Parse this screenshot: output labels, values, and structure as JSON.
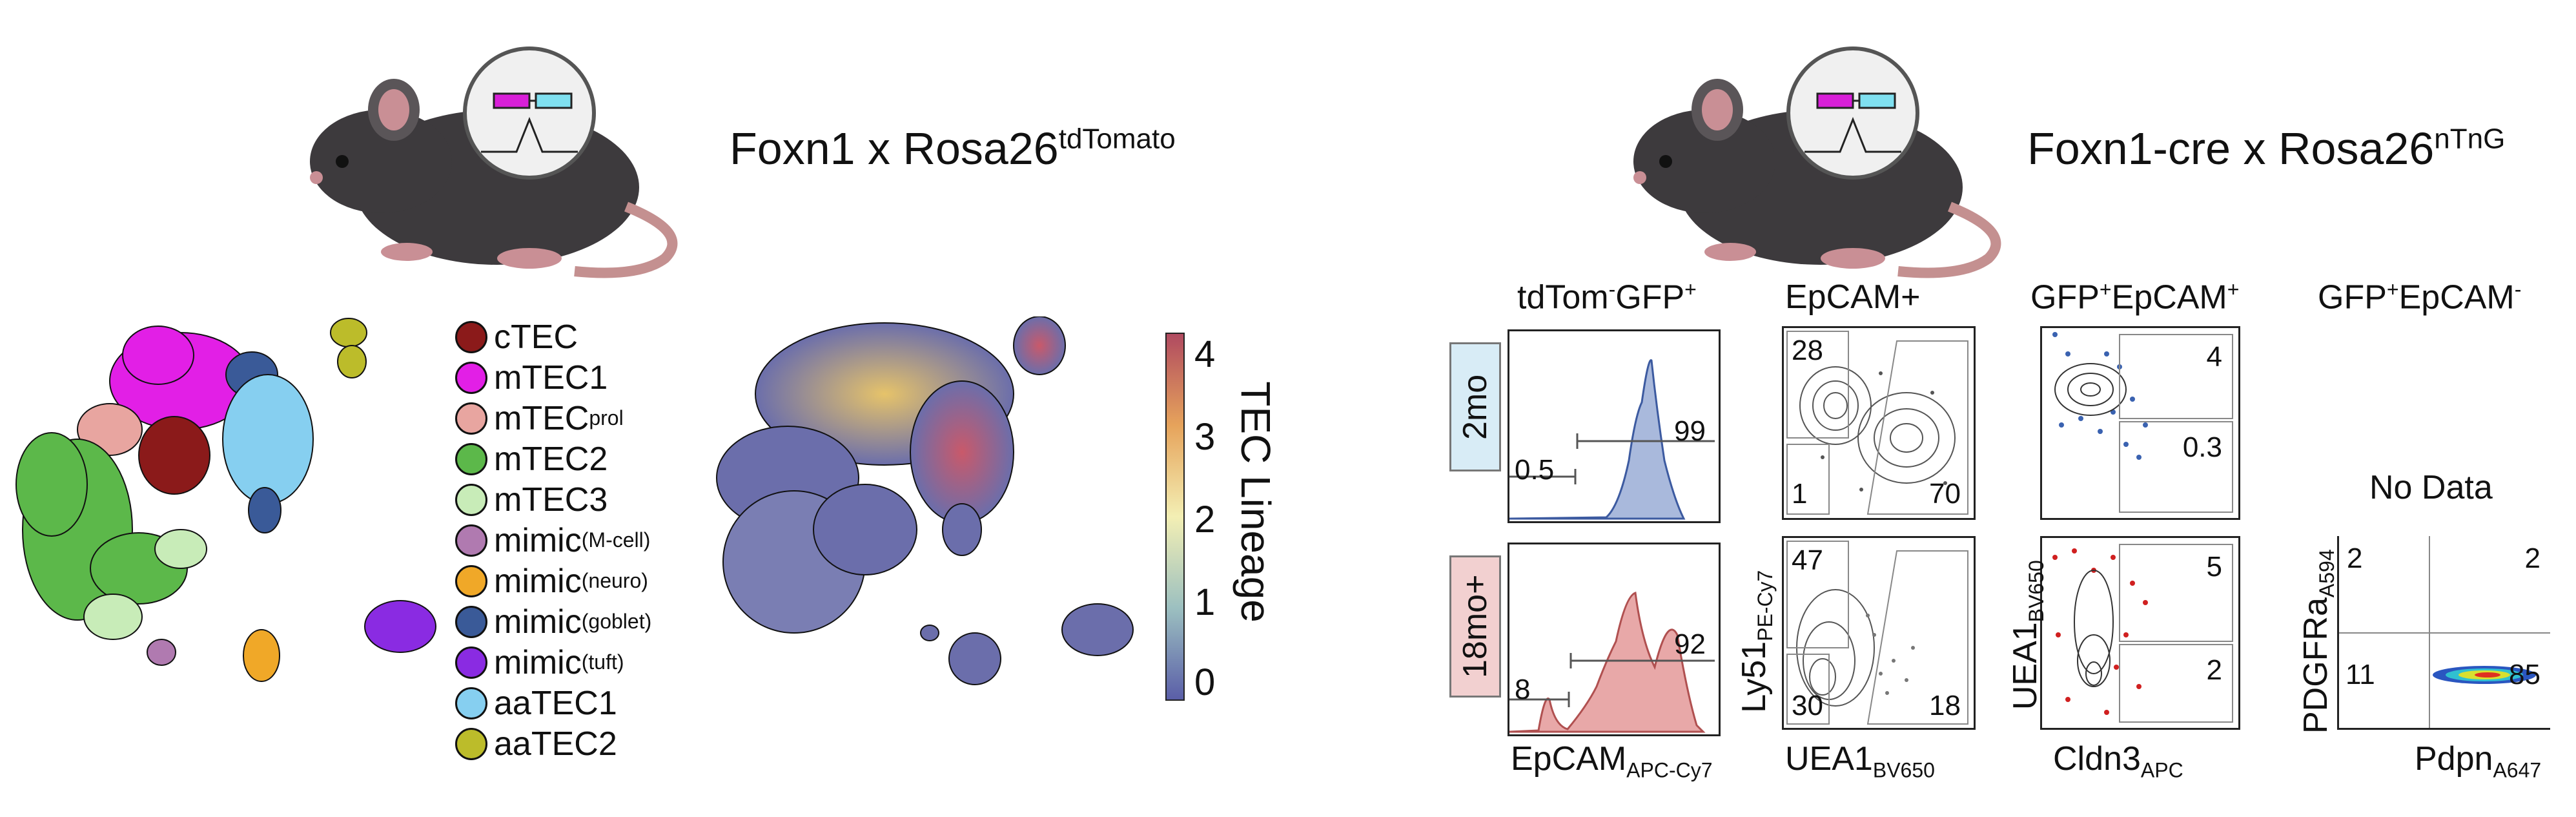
{
  "titles": {
    "left": {
      "main": "Foxn1 x Rosa26",
      "sup": "tdTomato"
    },
    "right": {
      "main": "Foxn1-cre x Rosa26",
      "sup": "nTnG"
    }
  },
  "legend": [
    {
      "label": "cTEC",
      "sup": "",
      "color": "#8b1a1a"
    },
    {
      "label": "mTEC1",
      "sup": "",
      "color": "#e21fe6"
    },
    {
      "label": "mTEC",
      "sup": "prol",
      "color": "#e8a5a0"
    },
    {
      "label": "mTEC2",
      "sup": "",
      "color": "#5cb84a"
    },
    {
      "label": "mTEC3",
      "sup": "",
      "color": "#c8ecb8"
    },
    {
      "label": "mimic",
      "sup": "(M-cell)",
      "color": "#b07ab0"
    },
    {
      "label": "mimic",
      "sup": "(neuro)",
      "color": "#f0a828"
    },
    {
      "label": "mimic",
      "sup": "(goblet)",
      "color": "#3a5a98"
    },
    {
      "label": "mimic",
      "sup": "(tuft)",
      "color": "#8a2be2"
    },
    {
      "label": "aaTEC1",
      "sup": "",
      "color": "#86cff0"
    },
    {
      "label": "aaTEC2",
      "sup": "",
      "color": "#bcbc2a"
    }
  ],
  "colorbar": {
    "label": "TEC Lineage",
    "ticks": [
      "0",
      "1",
      "2",
      "3",
      "4"
    ]
  },
  "columns": [
    {
      "main": "tdTom",
      "sup": "-",
      "main2": "GFP",
      "sup2": "+"
    },
    {
      "main": "EpCAM+",
      "sup": "",
      "main2": "",
      "sup2": ""
    },
    {
      "main": "GFP",
      "sup": "+",
      "main2": "EpCAM",
      "sup2": "+"
    },
    {
      "main": "GFP",
      "sup": "+",
      "main2": "EpCAM",
      "sup2": "-"
    }
  ],
  "rows": [
    {
      "label": "2mo",
      "color": "#d8ecf6"
    },
    {
      "label": "18mo+",
      "color": "#f2d0d0"
    }
  ],
  "gates": {
    "hist_2mo": [
      "99",
      "0.5"
    ],
    "hist_18mo": [
      "92",
      "8"
    ],
    "epcam_2mo": [
      "28",
      "1",
      "70"
    ],
    "epcam_18mo": [
      "47",
      "30",
      "18"
    ],
    "gfp_2mo": [
      "4",
      "0.3"
    ],
    "gfp_18mo": [
      "5",
      "2"
    ],
    "gfpneg": [
      "2",
      "2",
      "11",
      "85"
    ]
  },
  "no_data": "No Data",
  "axes": {
    "hist_x": {
      "main": "EpCAM",
      "sub": "APC-Cy7"
    },
    "epcam_x": {
      "main": "UEA1",
      "sub": "BV650"
    },
    "epcam_y": {
      "main": "Ly51",
      "sub": "PE-Cy7"
    },
    "gfp_x": {
      "main": "Cldn3",
      "sub": "APC"
    },
    "gfp_y": {
      "main": "UEA1",
      "sub": "BV650"
    },
    "neg_x": {
      "main": "Pdpn",
      "sub": "A647"
    },
    "neg_y": {
      "main": "PDGFRa",
      "sub": "A594"
    }
  }
}
